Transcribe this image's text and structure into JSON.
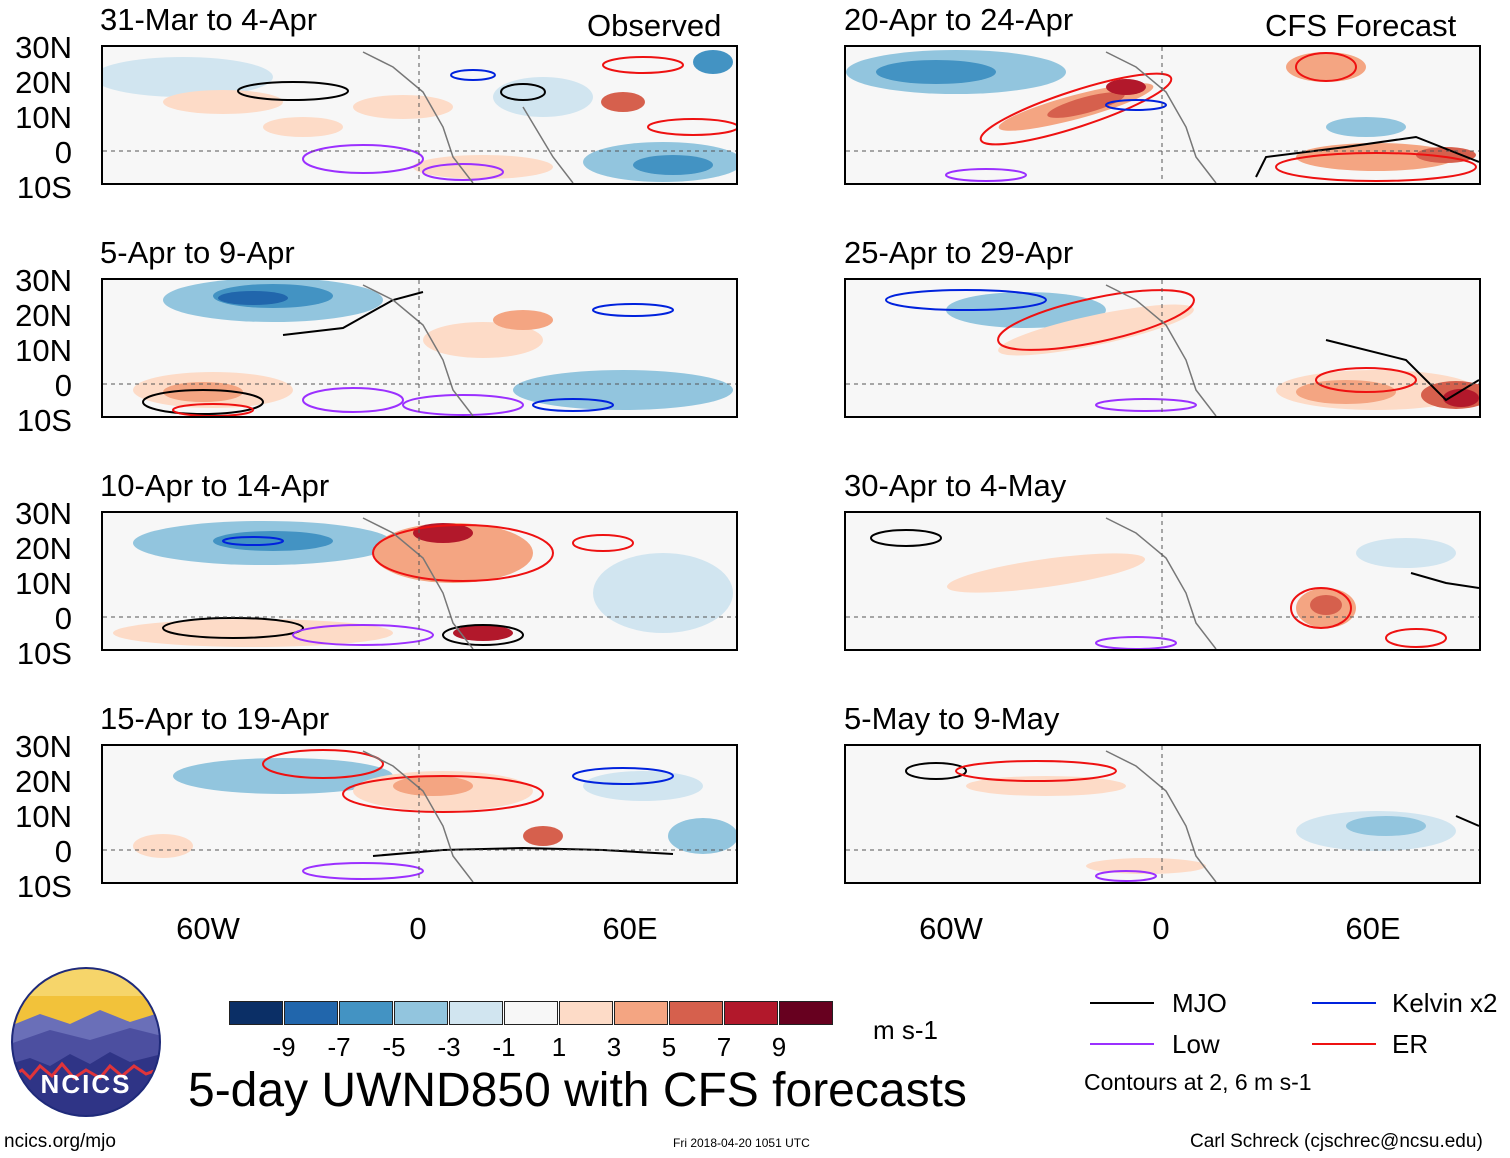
{
  "left_header": "Observed",
  "right_header": "CFS Forecast",
  "lat_labels": [
    "30N",
    "20N",
    "10N",
    "0",
    "10S"
  ],
  "lon_labels": [
    "60W",
    "0",
    "60E"
  ],
  "panels": [
    {
      "title": "31-Mar to 4-Apr"
    },
    {
      "title": "20-Apr to 24-Apr"
    },
    {
      "title": "5-Apr to 9-Apr"
    },
    {
      "title": "25-Apr to 29-Apr"
    },
    {
      "title": "10-Apr to 14-Apr"
    },
    {
      "title": "30-Apr to 4-May"
    },
    {
      "title": "15-Apr to 19-Apr"
    },
    {
      "title": "5-May to 9-May"
    }
  ],
  "colorbar": {
    "ticks": [
      "-9",
      "-7",
      "-5",
      "-3",
      "-1",
      "1",
      "3",
      "5",
      "7",
      "9"
    ],
    "colors": [
      "#0b2f66",
      "#2166ac",
      "#4393c3",
      "#92c5de",
      "#d1e5f0",
      "#f7f7f7",
      "#fddbc7",
      "#f4a582",
      "#d6604d",
      "#b2182b",
      "#67001f"
    ],
    "units": "m s-1"
  },
  "legend": {
    "items": [
      {
        "label": "MJO",
        "color": "#000000"
      },
      {
        "label": "Kelvin x2",
        "color": "#0022dd"
      },
      {
        "label": "Low",
        "color": "#9b30ff"
      },
      {
        "label": "ER",
        "color": "#ee1111"
      }
    ],
    "contour_note": "Contours at 2, 6 m s-1"
  },
  "logo_text": "NCICS",
  "main_title": "5-day UWND850 with CFS forecasts",
  "footer": {
    "url": "ncics.org/mjo",
    "timestamp": "Fri 2018-04-20 1051 UTC",
    "author": "Carl Schreck (cjschrec@ncsu.edu)"
  }
}
